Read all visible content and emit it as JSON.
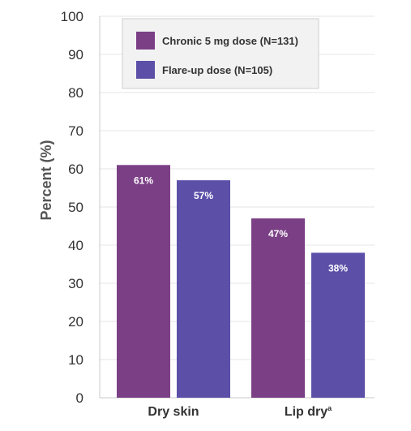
{
  "chart_data": {
    "type": "bar",
    "categories": [
      "Dry skin",
      "Lip dry"
    ],
    "category_superscripts": [
      "",
      "a"
    ],
    "series": [
      {
        "name": "Chronic 5 mg dose (N=131)",
        "values": [
          61,
          47
        ],
        "labels": [
          "61%",
          "47%"
        ],
        "color": "#7b3f86"
      },
      {
        "name": "Flare-up dose (N=105)",
        "values": [
          57,
          38
        ],
        "labels": [
          "57%",
          "38%"
        ],
        "color": "#5b4fa8"
      }
    ],
    "ylabel": "Percent (%)",
    "ylim": [
      0,
      100
    ],
    "yticks": [
      0,
      10,
      20,
      30,
      40,
      50,
      60,
      70,
      80,
      90,
      100
    ],
    "grid": true,
    "legend_position": "top-center"
  }
}
